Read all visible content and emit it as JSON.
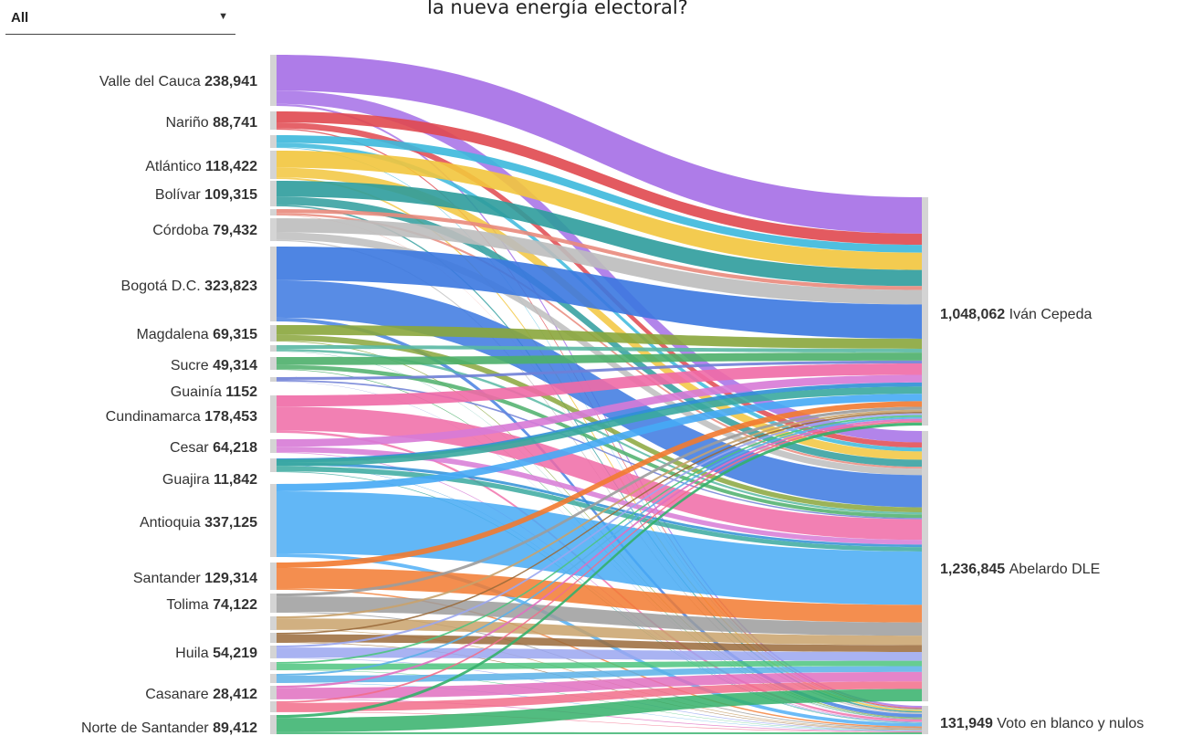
{
  "filter": {
    "value": "All"
  },
  "title": "la nueva energía electoral?",
  "chart_data": {
    "type": "sankey",
    "sources": [
      {
        "name": "Valle del Cauca",
        "value_label": "238,941",
        "color": "#a56ee6",
        "split": [
          0.7,
          0.26,
          0.04
        ]
      },
      {
        "name": "Nariño",
        "value_label": "88,741",
        "color": "#e0484f",
        "split": [
          0.6,
          0.33,
          0.07
        ]
      },
      {
        "name": "",
        "value_label": "",
        "color": "#3cb8dc",
        "split": [
          0.6,
          0.35,
          0.05
        ]
      },
      {
        "name": "Atlántico",
        "value_label": "118,422",
        "color": "#f2c53d",
        "split": [
          0.6,
          0.34,
          0.06
        ]
      },
      {
        "name": "Bolívar",
        "value_label": "109,315",
        "color": "#2e9c9c",
        "split": [
          0.62,
          0.32,
          0.06
        ]
      },
      {
        "name": "",
        "value_label": "",
        "color": "#e98a7c",
        "split": [
          0.6,
          0.35,
          0.05
        ]
      },
      {
        "name": "Córdoba",
        "value_label": "79,432",
        "color": "#bdbdbd",
        "split": [
          0.62,
          0.33,
          0.05
        ]
      },
      {
        "name": "Bogotá D.C.",
        "value_label": "323,823",
        "color": "#3b78e0",
        "split": [
          0.45,
          0.5,
          0.05
        ]
      },
      {
        "name": "Magdalena",
        "value_label": "69,315",
        "color": "#8aa63c",
        "split": [
          0.6,
          0.35,
          0.05
        ]
      },
      {
        "name": "",
        "value_label": "",
        "color": "#59b8a3",
        "split": [
          0.58,
          0.37,
          0.05
        ]
      },
      {
        "name": "Sucre",
        "value_label": "49,314",
        "color": "#4caf6a",
        "split": [
          0.62,
          0.33,
          0.05
        ]
      },
      {
        "name": "Guainía",
        "value_label": "1152",
        "color": "#6f7fd6",
        "split": [
          0.6,
          0.35,
          0.05
        ]
      },
      {
        "name": "Cundinamarca",
        "value_label": "178,453",
        "color": "#f06aa6",
        "split": [
          0.3,
          0.64,
          0.06
        ]
      },
      {
        "name": "Cesar",
        "value_label": "64,218",
        "color": "#d77ad6",
        "split": [
          0.55,
          0.4,
          0.05
        ]
      },
      {
        "name": "",
        "value_label": "",
        "color": "#2f8fd6",
        "split": [
          0.55,
          0.4,
          0.05
        ]
      },
      {
        "name": "Guajira",
        "value_label": "11,842",
        "color": "#3aa99f",
        "split": [
          0.55,
          0.4,
          0.05
        ]
      },
      {
        "name": "Antioquia",
        "value_label": "337,125",
        "color": "#46aaf5",
        "split": [
          0.1,
          0.85,
          0.05
        ]
      },
      {
        "name": "Santander",
        "value_label": "129,314",
        "color": "#f27a30",
        "split": [
          0.2,
          0.75,
          0.05
        ]
      },
      {
        "name": "Tolima",
        "value_label": "74,122",
        "color": "#9c9c9c",
        "split": [
          0.15,
          0.8,
          0.05
        ]
      },
      {
        "name": "",
        "value_label": "",
        "color": "#c9a26b",
        "split": [
          0.15,
          0.8,
          0.05
        ]
      },
      {
        "name": "",
        "value_label": "",
        "color": "#9a6a3a",
        "split": [
          0.15,
          0.8,
          0.05
        ]
      },
      {
        "name": "Huila",
        "value_label": "54,219",
        "color": "#9aa6f0",
        "split": [
          0.15,
          0.8,
          0.05
        ]
      },
      {
        "name": "",
        "value_label": "",
        "color": "#4cc47e",
        "split": [
          0.2,
          0.75,
          0.05
        ]
      },
      {
        "name": "",
        "value_label": "",
        "color": "#5ab0e8",
        "split": [
          0.2,
          0.75,
          0.05
        ]
      },
      {
        "name": "Casanare",
        "value_label": "28,412",
        "color": "#e06fc0",
        "split": [
          0.15,
          0.8,
          0.05
        ]
      },
      {
        "name": "",
        "value_label": "",
        "color": "#f26d8a",
        "split": [
          0.15,
          0.8,
          0.05
        ]
      },
      {
        "name": "Norte de Santander",
        "value_label": "89,412",
        "color": "#34b06a",
        "split": [
          0.15,
          0.75,
          0.1
        ]
      }
    ],
    "targets": [
      {
        "name": "Iván Cepeda",
        "value_label": "1,048,062"
      },
      {
        "name": "Abelardo DLE",
        "value_label": "1,236,845"
      },
      {
        "name": "Voto en blanco y nulos",
        "value_label": "131,949"
      }
    ]
  }
}
